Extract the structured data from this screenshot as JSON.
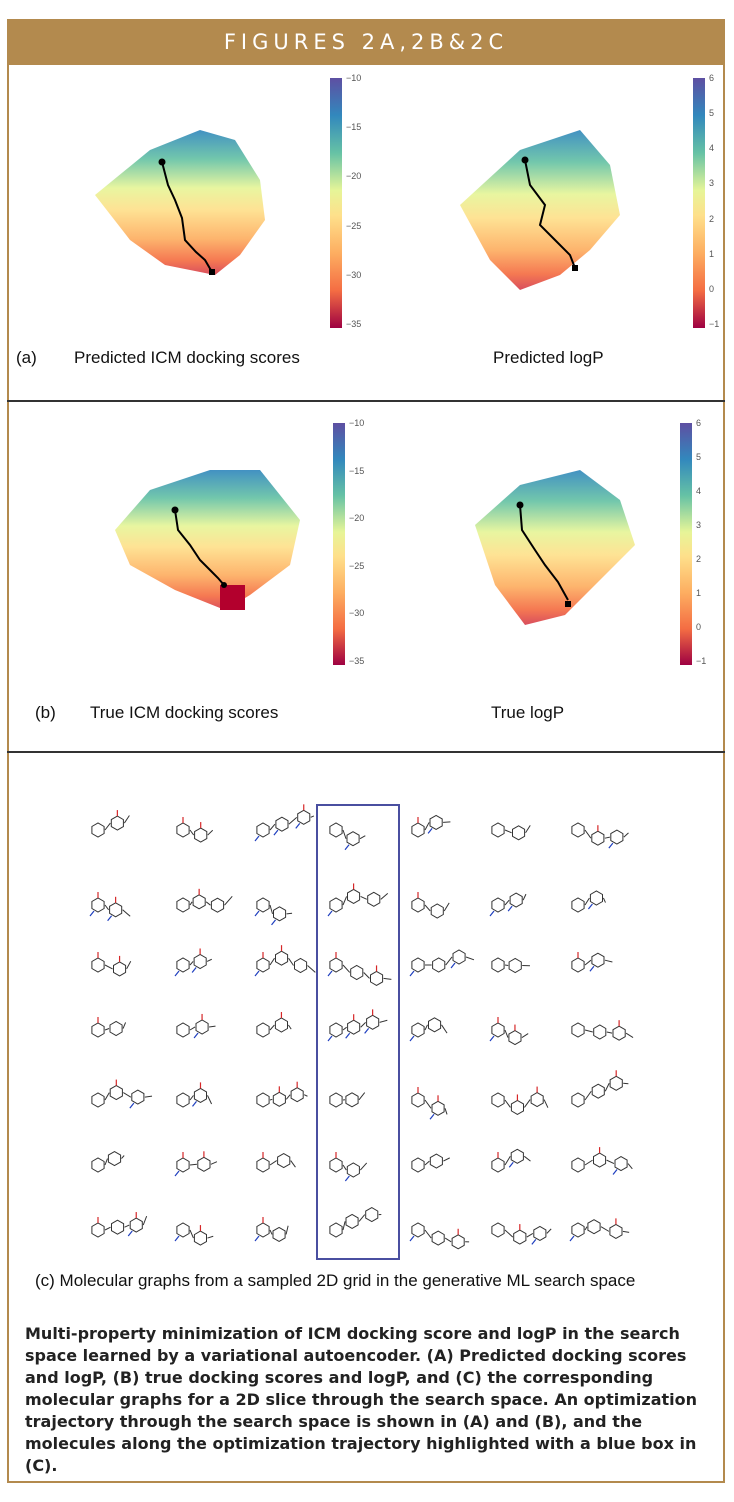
{
  "header": {
    "title": "FIGURES 2A,2B&2C"
  },
  "panel_a": {
    "label": "(a)",
    "left_title": "Predicted ICM docking scores",
    "right_title": "Predicted logP",
    "left_colorbar_ticks": [
      "−10",
      "−15",
      "−20",
      "−25",
      "−30",
      "−35"
    ],
    "right_colorbar_ticks": [
      "6",
      "5",
      "4",
      "3",
      "2",
      "1",
      "0",
      "−1"
    ]
  },
  "panel_b": {
    "label": "(b)",
    "left_title": "True ICM docking scores",
    "right_title": "True logP",
    "left_colorbar_ticks": [
      "−10",
      "−15",
      "−20",
      "−25",
      "−30",
      "−35"
    ],
    "right_colorbar_ticks": [
      "6",
      "5",
      "4",
      "3",
      "2",
      "1",
      "0",
      "−1"
    ]
  },
  "panel_c": {
    "caption": "(c) Molecular graphs from a sampled 2D grid in the generative ML search space"
  },
  "footer": {
    "caption": "Multi-property minimization of ICM docking score and logP in the search space learned by a variational autoencoder. (A) Predicted docking scores and logP, (B) true docking scores and logP, and (C) the corresponding molecular graphs for a 2D slice through the search space. An optimization trajectory through the search space is shown in (A) and (B), and the molecules along the optimization trajectory highlighted with a blue box in (C)."
  },
  "colors": {
    "header_bg": "#b38a4e",
    "highlight_box": "#4a4fa0"
  }
}
